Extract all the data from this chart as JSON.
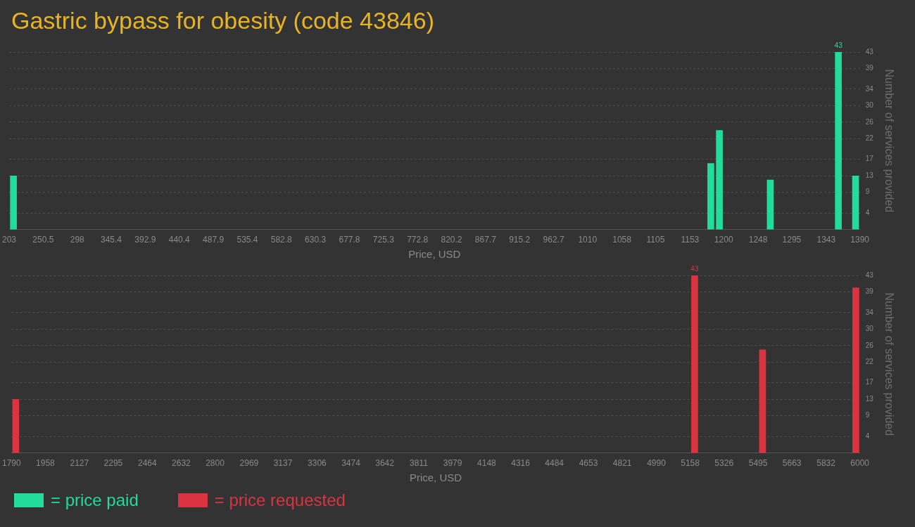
{
  "chart_data": [
    {
      "type": "bar",
      "title": "Gastric bypass for obesity (code 43846)",
      "xlabel": "Price, USD",
      "ylabel": "Number of services provided",
      "series": [
        {
          "name": "= price paid",
          "color": "#21dc9b",
          "x": [
            209,
            1182,
            1194,
            1265,
            1360,
            1384
          ],
          "values": [
            13,
            16,
            24,
            12,
            43,
            13
          ],
          "value_labels": [
            null,
            null,
            null,
            null,
            "43",
            null
          ]
        }
      ],
      "xlim": [
        203,
        1390
      ],
      "xticks": [
        203,
        250.5,
        298,
        345.4,
        392.9,
        440.4,
        487.9,
        535.4,
        582.8,
        630.3,
        677.8,
        725.3,
        772.8,
        820.2,
        867.7,
        915.2,
        962.7,
        1010,
        1058,
        1105,
        1153,
        1200,
        1248,
        1295,
        1343,
        1390
      ],
      "ylim": [
        0,
        43
      ],
      "yticks": [
        4,
        9,
        13,
        17,
        22,
        26,
        30,
        34,
        39,
        43
      ],
      "grid": "y",
      "legend": "bottom left"
    },
    {
      "type": "bar",
      "xlabel": "Price, USD",
      "ylabel": "Number of services provided",
      "series": [
        {
          "name": "= price requested",
          "color": "#dc3340",
          "x": [
            1811,
            5180,
            5517,
            5980
          ],
          "values": [
            13,
            43,
            25,
            40
          ],
          "value_labels": [
            null,
            "43",
            null,
            null
          ]
        }
      ],
      "xlim": [
        1790,
        6000
      ],
      "xticks": [
        1790,
        1958,
        2127,
        2295,
        2464,
        2632,
        2800,
        2969,
        3137,
        3306,
        3474,
        3642,
        3811,
        3979,
        4148,
        4316,
        4484,
        4653,
        4821,
        4990,
        5158,
        5326,
        5495,
        5663,
        5832,
        6000
      ],
      "ylim": [
        0,
        43
      ],
      "yticks": [
        4,
        9,
        13,
        17,
        22,
        26,
        30,
        34,
        39,
        43
      ],
      "grid": "y",
      "legend": "bottom left"
    }
  ]
}
